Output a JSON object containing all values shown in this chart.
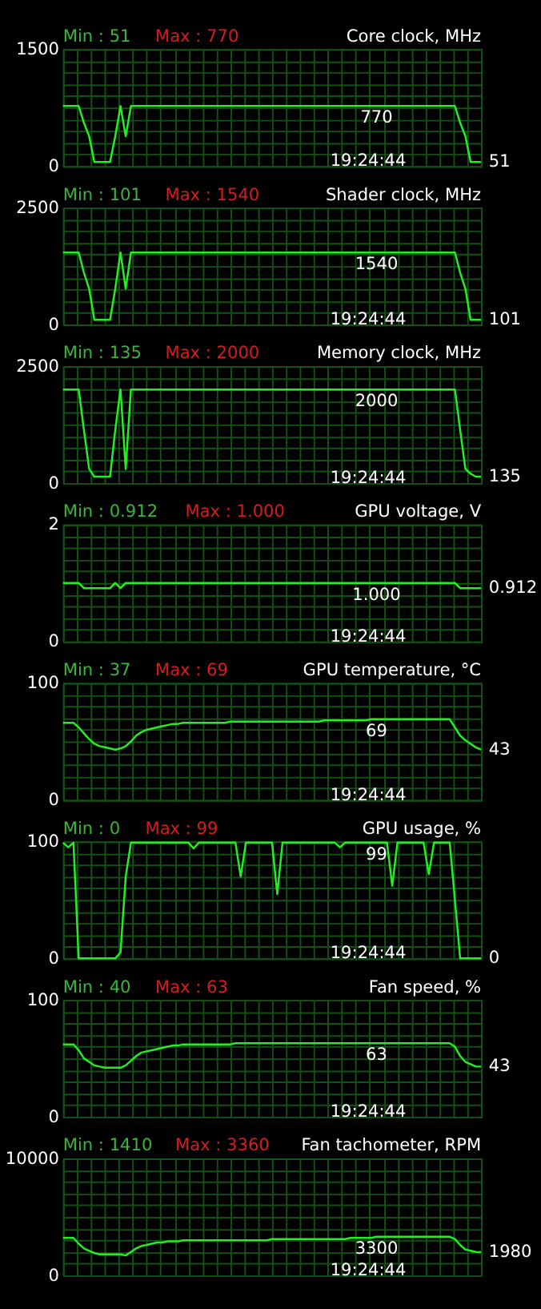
{
  "chart_data": [
    {
      "type": "line",
      "title": "Core clock, MHz",
      "categories": [
        null,
        null,
        null,
        null,
        null,
        null,
        null,
        null,
        null,
        null,
        null,
        null,
        null,
        null,
        null,
        null,
        null,
        null,
        null,
        null,
        null,
        null,
        null,
        null,
        null,
        null,
        null,
        null,
        null,
        null,
        null,
        null,
        null,
        null,
        null,
        null,
        null,
        null,
        null,
        null,
        null,
        null,
        null,
        null,
        null,
        null,
        null,
        null,
        null,
        null,
        null,
        null,
        null,
        null,
        null,
        null,
        null,
        null,
        null,
        null,
        null,
        null,
        null,
        null,
        null,
        null,
        null,
        null,
        null,
        null,
        null,
        null,
        null,
        null,
        null,
        null,
        null,
        null,
        null,
        null,
        null
      ],
      "series": [
        {
          "color": "#22ee22",
          "values": [
            770,
            770,
            770,
            770,
            555,
            383,
            51,
            51,
            51,
            51,
            383,
            770,
            383,
            770,
            770,
            770,
            770,
            770,
            770,
            770,
            770,
            770,
            770,
            770,
            770,
            770,
            770,
            770,
            770,
            770,
            770,
            770,
            770,
            770,
            770,
            770,
            770,
            770,
            770,
            770,
            770,
            770,
            770,
            770,
            770,
            770,
            770,
            770,
            770,
            770,
            770,
            770,
            770,
            770,
            770,
            770,
            770,
            770,
            770,
            770,
            770,
            770,
            770,
            770,
            770,
            770,
            770,
            770,
            770,
            770,
            770,
            770,
            770,
            770,
            770,
            770,
            555,
            383,
            51,
            51,
            51
          ]
        }
      ],
      "ylim": [
        0,
        1500
      ],
      "yticks": [
        0,
        {
          "value": 150,
          "label": null
        },
        {
          "value": 300,
          "label": null
        },
        {
          "value": 450,
          "label": null
        },
        {
          "value": 600,
          "label": null
        },
        {
          "value": 750,
          "label": null
        },
        {
          "value": 900,
          "label": null
        },
        {
          "value": 1050,
          "label": null
        },
        {
          "value": 1200,
          "label": null
        },
        {
          "value": 1350,
          "label": null
        },
        1500
      ],
      "grid": true,
      "tick_labels": "y",
      "annotations": [
        "Min : 51",
        "Max : 770",
        "19:24:44",
        "51",
        {
          "text": "770",
          "y": 770
        }
      ]
    },
    {
      "type": "line",
      "title": "Shader clock, MHz",
      "categories": [
        null,
        null,
        null,
        null,
        null,
        null,
        null,
        null,
        null,
        null,
        null,
        null,
        null,
        null,
        null,
        null,
        null,
        null,
        null,
        null,
        null,
        null,
        null,
        null,
        null,
        null,
        null,
        null,
        null,
        null,
        null,
        null,
        null,
        null,
        null,
        null,
        null,
        null,
        null,
        null,
        null,
        null,
        null,
        null,
        null,
        null,
        null,
        null,
        null,
        null,
        null,
        null,
        null,
        null,
        null,
        null,
        null,
        null,
        null,
        null,
        null,
        null,
        null,
        null,
        null,
        null,
        null,
        null,
        null,
        null,
        null,
        null,
        null,
        null,
        null,
        null,
        null,
        null,
        null,
        null,
        null
      ],
      "series": [
        {
          "color": "#22ee22",
          "values": [
            1540,
            1540,
            1540,
            1540,
            1110,
            766,
            101,
            101,
            101,
            101,
            766,
            1540,
            766,
            1540,
            1540,
            1540,
            1540,
            1540,
            1540,
            1540,
            1540,
            1540,
            1540,
            1540,
            1540,
            1540,
            1540,
            1540,
            1540,
            1540,
            1540,
            1540,
            1540,
            1540,
            1540,
            1540,
            1540,
            1540,
            1540,
            1540,
            1540,
            1540,
            1540,
            1540,
            1540,
            1540,
            1540,
            1540,
            1540,
            1540,
            1540,
            1540,
            1540,
            1540,
            1540,
            1540,
            1540,
            1540,
            1540,
            1540,
            1540,
            1540,
            1540,
            1540,
            1540,
            1540,
            1540,
            1540,
            1540,
            1540,
            1540,
            1540,
            1540,
            1540,
            1540,
            1540,
            1110,
            766,
            101,
            101,
            101
          ]
        }
      ],
      "ylim": [
        0,
        2500
      ],
      "yticks": [
        0,
        {
          "value": 250,
          "label": null
        },
        {
          "value": 500,
          "label": null
        },
        {
          "value": 750,
          "label": null
        },
        {
          "value": 1000,
          "label": null
        },
        {
          "value": 1250,
          "label": null
        },
        {
          "value": 1500,
          "label": null
        },
        {
          "value": 1750,
          "label": null
        },
        {
          "value": 2000,
          "label": null
        },
        {
          "value": 2250,
          "label": null
        },
        2500
      ],
      "grid": true,
      "tick_labels": "y",
      "annotations": [
        "Min : 101",
        "Max : 1540",
        "19:24:44",
        "101",
        {
          "text": "1540",
          "y": 1540
        }
      ]
    },
    {
      "type": "line",
      "title": "Memory clock, MHz",
      "categories": [
        null,
        null,
        null,
        null,
        null,
        null,
        null,
        null,
        null,
        null,
        null,
        null,
        null,
        null,
        null,
        null,
        null,
        null,
        null,
        null,
        null,
        null,
        null,
        null,
        null,
        null,
        null,
        null,
        null,
        null,
        null,
        null,
        null,
        null,
        null,
        null,
        null,
        null,
        null,
        null,
        null,
        null,
        null,
        null,
        null,
        null,
        null,
        null,
        null,
        null,
        null,
        null,
        null,
        null,
        null,
        null,
        null,
        null,
        null,
        null,
        null,
        null,
        null,
        null,
        null,
        null,
        null,
        null,
        null,
        null,
        null,
        null,
        null,
        null,
        null,
        null,
        null,
        null,
        null,
        null,
        null
      ],
      "series": [
        {
          "color": "#22ee22",
          "values": [
            2000,
            2000,
            2000,
            2000,
            1135,
            300,
            135,
            135,
            135,
            135,
            1135,
            2000,
            300,
            2000,
            2000,
            2000,
            2000,
            2000,
            2000,
            2000,
            2000,
            2000,
            2000,
            2000,
            2000,
            2000,
            2000,
            2000,
            2000,
            2000,
            2000,
            2000,
            2000,
            2000,
            2000,
            2000,
            2000,
            2000,
            2000,
            2000,
            2000,
            2000,
            2000,
            2000,
            2000,
            2000,
            2000,
            2000,
            2000,
            2000,
            2000,
            2000,
            2000,
            2000,
            2000,
            2000,
            2000,
            2000,
            2000,
            2000,
            2000,
            2000,
            2000,
            2000,
            2000,
            2000,
            2000,
            2000,
            2000,
            2000,
            2000,
            2000,
            2000,
            2000,
            2000,
            2000,
            1135,
            300,
            200,
            135,
            135
          ]
        }
      ],
      "ylim": [
        0,
        2500
      ],
      "yticks": [
        0,
        {
          "value": 250,
          "label": null
        },
        {
          "value": 500,
          "label": null
        },
        {
          "value": 750,
          "label": null
        },
        {
          "value": 1000,
          "label": null
        },
        {
          "value": 1250,
          "label": null
        },
        {
          "value": 1500,
          "label": null
        },
        {
          "value": 1750,
          "label": null
        },
        {
          "value": 2000,
          "label": null
        },
        {
          "value": 2250,
          "label": null
        },
        2500
      ],
      "grid": true,
      "tick_labels": "y",
      "annotations": [
        "Min : 135",
        "Max : 2000",
        "19:24:44",
        "135",
        {
          "text": "2000",
          "y": 2000
        }
      ]
    },
    {
      "type": "line",
      "title": "GPU voltage, V",
      "categories": [
        null,
        null,
        null,
        null,
        null,
        null,
        null,
        null,
        null,
        null,
        null,
        null,
        null,
        null,
        null,
        null,
        null,
        null,
        null,
        null,
        null,
        null,
        null,
        null,
        null,
        null,
        null,
        null,
        null,
        null,
        null,
        null,
        null,
        null,
        null,
        null,
        null,
        null,
        null,
        null,
        null,
        null,
        null,
        null,
        null,
        null,
        null,
        null,
        null,
        null,
        null,
        null,
        null,
        null,
        null,
        null,
        null,
        null,
        null,
        null,
        null,
        null,
        null,
        null,
        null,
        null,
        null,
        null,
        null,
        null,
        null,
        null,
        null,
        null,
        null,
        null,
        null,
        null,
        null,
        null,
        null
      ],
      "series": [
        {
          "color": "#22ee22",
          "values": [
            1.0,
            1.0,
            1.0,
            1.0,
            0.912,
            0.912,
            0.912,
            0.912,
            0.912,
            0.912,
            1.0,
            0.912,
            1.0,
            1.0,
            1.0,
            1.0,
            1.0,
            1.0,
            1.0,
            1.0,
            1.0,
            1.0,
            1.0,
            1.0,
            1.0,
            1.0,
            1.0,
            1.0,
            1.0,
            1.0,
            1.0,
            1.0,
            1.0,
            1.0,
            1.0,
            1.0,
            1.0,
            1.0,
            1.0,
            1.0,
            1.0,
            1.0,
            1.0,
            1.0,
            1.0,
            1.0,
            1.0,
            1.0,
            1.0,
            1.0,
            1.0,
            1.0,
            1.0,
            1.0,
            1.0,
            1.0,
            1.0,
            1.0,
            1.0,
            1.0,
            1.0,
            1.0,
            1.0,
            1.0,
            1.0,
            1.0,
            1.0,
            1.0,
            1.0,
            1.0,
            1.0,
            1.0,
            1.0,
            1.0,
            1.0,
            1.0,
            0.912,
            0.912,
            0.912,
            0.912,
            0.912
          ]
        }
      ],
      "ylim": [
        0,
        2
      ],
      "yticks": [
        0,
        {
          "value": 0.2,
          "label": null
        },
        {
          "value": 0.4,
          "label": null
        },
        {
          "value": 0.6,
          "label": null
        },
        {
          "value": 0.8,
          "label": null
        },
        {
          "value": 1,
          "label": null
        },
        {
          "value": 1.2,
          "label": null
        },
        {
          "value": 1.4,
          "label": null
        },
        {
          "value": 1.6,
          "label": null
        },
        {
          "value": 1.8,
          "label": null
        },
        2
      ],
      "grid": true,
      "tick_labels": "y",
      "annotations": [
        "Min : 0.912",
        "Max : 1.000",
        "19:24:44",
        "0.912",
        {
          "text": "1.000",
          "y": 1.0
        }
      ]
    },
    {
      "type": "line",
      "title": "GPU temperature, °C",
      "categories": [
        null,
        null,
        null,
        null,
        null,
        null,
        null,
        null,
        null,
        null,
        null,
        null,
        null,
        null,
        null,
        null,
        null,
        null,
        null,
        null,
        null,
        null,
        null,
        null,
        null,
        null,
        null,
        null,
        null,
        null,
        null,
        null,
        null,
        null,
        null,
        null,
        null,
        null,
        null,
        null,
        null,
        null,
        null,
        null,
        null,
        null,
        null,
        null,
        null,
        null,
        null,
        null,
        null,
        null,
        null,
        null,
        null,
        null,
        null,
        null,
        null,
        null,
        null,
        null,
        null,
        null,
        null,
        null,
        null,
        null,
        null,
        null,
        null,
        null,
        null,
        null,
        null,
        null,
        null,
        null,
        null
      ],
      "series": [
        {
          "color": "#22ee22",
          "values": [
            66,
            66,
            66,
            62,
            57,
            52,
            48,
            46,
            45,
            44,
            43,
            44,
            46,
            50,
            55,
            58,
            60,
            61,
            62,
            63,
            64,
            65,
            65,
            66,
            66,
            66,
            66,
            66,
            66,
            66,
            66,
            66,
            67,
            67,
            67,
            67,
            67,
            67,
            67,
            67,
            67,
            67,
            67,
            67,
            67,
            67,
            67,
            67,
            67,
            67,
            68,
            68,
            68,
            68,
            68,
            68,
            68,
            68,
            68,
            69,
            69,
            69,
            69,
            69,
            69,
            69,
            69,
            69,
            69,
            69,
            69,
            69,
            69,
            69,
            69,
            62,
            55,
            51,
            48,
            45,
            43
          ]
        }
      ],
      "ylim": [
        0,
        100
      ],
      "yticks": [
        0,
        {
          "value": 10,
          "label": null
        },
        {
          "value": 20,
          "label": null
        },
        {
          "value": 30,
          "label": null
        },
        {
          "value": 40,
          "label": null
        },
        {
          "value": 50,
          "label": null
        },
        {
          "value": 60,
          "label": null
        },
        {
          "value": 70,
          "label": null
        },
        {
          "value": 80,
          "label": null
        },
        {
          "value": 90,
          "label": null
        },
        100
      ],
      "grid": true,
      "tick_labels": "y",
      "annotations": [
        "Min : 37",
        "Max : 69",
        "19:24:44",
        "43",
        {
          "text": "69",
          "y": 69
        }
      ]
    },
    {
      "type": "line",
      "title": "GPU usage, %",
      "categories": [
        null,
        null,
        null,
        null,
        null,
        null,
        null,
        null,
        null,
        null,
        null,
        null,
        null,
        null,
        null,
        null,
        null,
        null,
        null,
        null,
        null,
        null,
        null,
        null,
        null,
        null,
        null,
        null,
        null,
        null,
        null,
        null,
        null,
        null,
        null,
        null,
        null,
        null,
        null,
        null,
        null,
        null,
        null,
        null,
        null,
        null,
        null,
        null,
        null,
        null,
        null,
        null,
        null,
        null,
        null,
        null,
        null,
        null,
        null,
        null,
        null,
        null,
        null,
        null,
        null,
        null,
        null,
        null,
        null,
        null,
        null,
        null,
        null,
        null,
        null,
        null,
        null,
        null,
        null,
        null,
        null
      ],
      "series": [
        {
          "color": "#22ee22",
          "values": [
            99,
            95,
            99,
            0,
            0,
            0,
            0,
            0,
            0,
            0,
            0,
            5,
            70,
            99,
            99,
            99,
            99,
            99,
            99,
            99,
            99,
            99,
            99,
            99,
            99,
            94,
            99,
            99,
            99,
            99,
            99,
            99,
            99,
            99,
            70,
            99,
            99,
            99,
            99,
            99,
            99,
            55,
            99,
            99,
            99,
            99,
            99,
            99,
            99,
            99,
            99,
            99,
            99,
            95,
            99,
            99,
            99,
            99,
            99,
            99,
            99,
            99,
            99,
            62,
            99,
            99,
            99,
            99,
            99,
            99,
            72,
            99,
            99,
            99,
            99,
            50,
            0,
            0,
            0,
            0,
            0
          ]
        }
      ],
      "ylim": [
        0,
        100
      ],
      "yticks": [
        0,
        {
          "value": 10,
          "label": null
        },
        {
          "value": 20,
          "label": null
        },
        {
          "value": 30,
          "label": null
        },
        {
          "value": 40,
          "label": null
        },
        {
          "value": 50,
          "label": null
        },
        {
          "value": 60,
          "label": null
        },
        {
          "value": 70,
          "label": null
        },
        {
          "value": 80,
          "label": null
        },
        {
          "value": 90,
          "label": null
        },
        100
      ],
      "grid": true,
      "tick_labels": "y",
      "annotations": [
        "Min : 0",
        "Max : 99",
        "19:24:44",
        "0",
        {
          "text": "99",
          "y": 99
        }
      ]
    },
    {
      "type": "line",
      "title": "Fan speed, %",
      "categories": [
        null,
        null,
        null,
        null,
        null,
        null,
        null,
        null,
        null,
        null,
        null,
        null,
        null,
        null,
        null,
        null,
        null,
        null,
        null,
        null,
        null,
        null,
        null,
        null,
        null,
        null,
        null,
        null,
        null,
        null,
        null,
        null,
        null,
        null,
        null,
        null,
        null,
        null,
        null,
        null,
        null,
        null,
        null,
        null,
        null,
        null,
        null,
        null,
        null,
        null,
        null,
        null,
        null,
        null,
        null,
        null,
        null,
        null,
        null,
        null,
        null,
        null,
        null,
        null,
        null,
        null,
        null,
        null,
        null,
        null,
        null,
        null,
        null,
        null,
        null,
        null,
        null,
        null,
        null,
        null,
        null
      ],
      "series": [
        {
          "color": "#22ee22",
          "values": [
            62,
            62,
            62,
            57,
            50,
            47,
            44,
            43,
            42,
            42,
            42,
            42,
            44,
            48,
            52,
            55,
            56,
            57,
            58,
            59,
            60,
            61,
            61,
            62,
            62,
            62,
            62,
            62,
            62,
            62,
            62,
            62,
            62,
            63,
            63,
            63,
            63,
            63,
            63,
            63,
            63,
            63,
            63,
            63,
            63,
            63,
            63,
            63,
            63,
            63,
            63,
            63,
            63,
            63,
            63,
            63,
            63,
            63,
            63,
            63,
            63,
            63,
            63,
            63,
            63,
            63,
            63,
            63,
            63,
            63,
            63,
            63,
            63,
            63,
            63,
            60,
            52,
            47,
            45,
            43,
            43
          ]
        }
      ],
      "ylim": [
        0,
        100
      ],
      "yticks": [
        0,
        {
          "value": 10,
          "label": null
        },
        {
          "value": 20,
          "label": null
        },
        {
          "value": 30,
          "label": null
        },
        {
          "value": 40,
          "label": null
        },
        {
          "value": 50,
          "label": null
        },
        {
          "value": 60,
          "label": null
        },
        {
          "value": 70,
          "label": null
        },
        {
          "value": 80,
          "label": null
        },
        {
          "value": 90,
          "label": null
        },
        100
      ],
      "grid": true,
      "tick_labels": "y",
      "annotations": [
        "Min : 40",
        "Max : 63",
        "19:24:44",
        "43",
        {
          "text": "63",
          "y": 63
        }
      ]
    },
    {
      "type": "line",
      "title": "Fan tachometer, RPM",
      "categories": [
        null,
        null,
        null,
        null,
        null,
        null,
        null,
        null,
        null,
        null,
        null,
        null,
        null,
        null,
        null,
        null,
        null,
        null,
        null,
        null,
        null,
        null,
        null,
        null,
        null,
        null,
        null,
        null,
        null,
        null,
        null,
        null,
        null,
        null,
        null,
        null,
        null,
        null,
        null,
        null,
        null,
        null,
        null,
        null,
        null,
        null,
        null,
        null,
        null,
        null,
        null,
        null,
        null,
        null,
        null,
        null,
        null,
        null,
        null,
        null,
        null,
        null,
        null,
        null,
        null,
        null,
        null,
        null,
        null,
        null,
        null,
        null,
        null,
        null,
        null,
        null,
        null,
        null,
        null,
        null,
        null
      ],
      "series": [
        {
          "color": "#22ee22",
          "values": [
            3200,
            3200,
            3200,
            2700,
            2300,
            2100,
            1900,
            1800,
            1800,
            1800,
            1800,
            1800,
            1700,
            2000,
            2300,
            2500,
            2600,
            2700,
            2800,
            2800,
            2900,
            2900,
            2900,
            3000,
            3000,
            3000,
            3000,
            3000,
            3000,
            3000,
            3000,
            3000,
            3000,
            3000,
            3000,
            3000,
            3000,
            3000,
            3000,
            3000,
            3100,
            3100,
            3100,
            3100,
            3100,
            3100,
            3100,
            3100,
            3100,
            3100,
            3100,
            3100,
            3100,
            3100,
            3100,
            3200,
            3200,
            3200,
            3200,
            3200,
            3300,
            3300,
            3300,
            3300,
            3300,
            3300,
            3300,
            3300,
            3300,
            3300,
            3300,
            3300,
            3300,
            3300,
            3300,
            3100,
            2600,
            2200,
            2100,
            2000,
            1980
          ]
        }
      ],
      "ylim": [
        0,
        10000
      ],
      "yticks": [
        0,
        {
          "value": 1000,
          "label": null
        },
        {
          "value": 2000,
          "label": null
        },
        {
          "value": 3000,
          "label": null
        },
        {
          "value": 4000,
          "label": null
        },
        {
          "value": 5000,
          "label": null
        },
        {
          "value": 6000,
          "label": null
        },
        {
          "value": 7000,
          "label": null
        },
        {
          "value": 8000,
          "label": null
        },
        {
          "value": 9000,
          "label": null
        },
        10000
      ],
      "grid": true,
      "tick_labels": "y",
      "annotations": [
        "Min : 1410",
        "Max : 3360",
        "19:24:44",
        "1980",
        {
          "text": "3300",
          "y": 3300
        }
      ]
    }
  ]
}
